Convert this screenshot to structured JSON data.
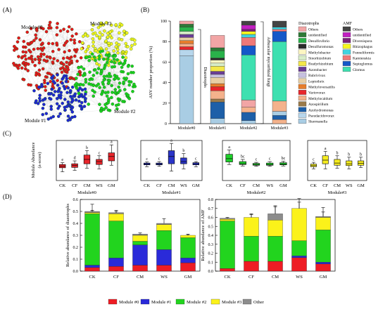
{
  "panel_labels": {
    "A": "(A)",
    "B": "(B)",
    "C": "(C)",
    "D": "(D)"
  },
  "network": {
    "modules": [
      {
        "label": "Module #0",
        "color": "#e8141a"
      },
      {
        "label": "Module #1",
        "color": "#1f24d6"
      },
      {
        "label": "Module #2",
        "color": "#19d11e"
      },
      {
        "label": "Module #3",
        "color": "#f6f61e"
      }
    ]
  },
  "colors": {
    "m0": "#ee1c24",
    "m1": "#2a2ad9",
    "m2": "#22d41e",
    "m3": "#fbf21a",
    "other": "#8c8c8c",
    "box_m0": "#e8262c",
    "box_m1": "#2b35c9",
    "box_m2": "#1dd02a",
    "box_m3": "#f6ed20"
  },
  "chart_data": [
    {
      "panel": "B",
      "type": "bar",
      "stacked": true,
      "ylabel": "ASV number proportion (%)",
      "ylim": [
        0,
        100
      ],
      "yticks": [
        0,
        20,
        40,
        60,
        80,
        100
      ],
      "categories": [
        "Module#0",
        "Module#1",
        "Module#2",
        "Module#3"
      ],
      "bracket_labels": [
        "Diazotrophs",
        "Arbuscular mycorrhizal fungi"
      ],
      "legend_titles": [
        "Diazotrophs",
        "AMF"
      ],
      "diazotroph_legend": [
        {
          "name": "Others",
          "color": "#f2a5a5"
        },
        {
          "name": "unidentified",
          "color": "#2e7a37"
        },
        {
          "name": "Desulfovibrio",
          "color": "#29b24a"
        },
        {
          "name": "Desulfuromonas",
          "color": "#2b2b2b"
        },
        {
          "name": "Methylobacter",
          "color": "#fcf6c2"
        },
        {
          "name": "Sinorhizobium",
          "color": "#d7ecc8"
        },
        {
          "name": "Bradyrhizobium",
          "color": "#f4e84a"
        },
        {
          "name": "Azotobacter",
          "color": "#6a3d97"
        },
        {
          "name": "Rubrivivax",
          "color": "#c7c1e0"
        },
        {
          "name": "Leptothrix",
          "color": "#e8cfa5"
        },
        {
          "name": "Methyloversatilis",
          "color": "#e77d2c"
        },
        {
          "name": "Variovorax",
          "color": "#e8262c"
        },
        {
          "name": "Methylocaldum",
          "color": "#f4b28c"
        },
        {
          "name": "Azospirillum",
          "color": "#9a7a4a"
        },
        {
          "name": "Azohydromonas",
          "color": "#1d5fa8"
        },
        {
          "name": "Pseudacidovorax",
          "color": "#b7d6ec"
        },
        {
          "name": "Skermanella",
          "color": "#a9cde4"
        }
      ],
      "amf_legend": [
        {
          "name": "Others",
          "color": "#444444"
        },
        {
          "name": "unidentified",
          "color": "#c21fc2"
        },
        {
          "name": "Diversispora",
          "color": "#7a1f7a"
        },
        {
          "name": "Rhizophagus",
          "color": "#f6f61e"
        },
        {
          "name": "Funneliformis",
          "color": "#3fd4e0"
        },
        {
          "name": "Kamienskia",
          "color": "#f07878"
        },
        {
          "name": "Septoglomus",
          "color": "#1458c8"
        },
        {
          "name": "Glomus",
          "color": "#3ee0b0"
        }
      ],
      "series_by_column": [
        [
          {
            "name": "Skermanella",
            "value": 66
          },
          {
            "name": "Pseudacidovorax",
            "value": 6
          },
          {
            "name": "Variovorax",
            "value": 3
          },
          {
            "name": "Methylocaldum",
            "value": 3
          },
          {
            "name": "Methyloversatilis",
            "value": 3
          },
          {
            "name": "Leptothrix",
            "value": 3
          },
          {
            "name": "Azotobacter",
            "value": 3
          },
          {
            "name": "Sinorhizobium",
            "value": 3
          },
          {
            "name": "Desulfovibrio",
            "value": 4
          },
          {
            "name": "unidentified",
            "value": 3
          },
          {
            "name": "Others",
            "value": 3
          }
        ],
        [
          {
            "name": "Skermanella",
            "value": 5
          },
          {
            "name": "Azohydromonas",
            "value": 16
          },
          {
            "name": "Azospirillum",
            "value": 3
          },
          {
            "name": "Methylocaldum",
            "value": 8
          },
          {
            "name": "Variovorax",
            "value": 4
          },
          {
            "name": "Methyloversatilis",
            "value": 3
          },
          {
            "name": "Leptothrix",
            "value": 6
          },
          {
            "name": "Rubrivivax",
            "value": 3
          },
          {
            "name": "Azotobacter",
            "value": 3
          },
          {
            "name": "Bradyrhizobium",
            "value": 5
          },
          {
            "name": "Sinorhizobium",
            "value": 3
          },
          {
            "name": "Methylobacter",
            "value": 3
          },
          {
            "name": "Desulfuromonas",
            "value": 2
          },
          {
            "name": "Desulfovibrio",
            "value": 7
          },
          {
            "name": "unidentified",
            "value": 3
          },
          {
            "name": "Others",
            "value": 12
          }
        ],
        [
          {
            "name": "Skermanella",
            "value": 3
          },
          {
            "name": "Azohydromonas",
            "value": 8
          },
          {
            "name": "Methylocaldum",
            "value": 5
          },
          {
            "name": "Others",
            "value": 7
          },
          {
            "name": "Glomus",
            "value": 44
          },
          {
            "name": "Septoglomus",
            "value": 9
          },
          {
            "name": "Kamienskia",
            "value": 8
          },
          {
            "name": "Funneliformis",
            "value": 3
          },
          {
            "name": "Rhizophagus",
            "value": 3
          },
          {
            "name": "Diversispora",
            "value": 2
          },
          {
            "name": "unidentified",
            "value": 4
          },
          {
            "name": "Others",
            "value": 4
          }
        ],
        [
          {
            "name": "Methylocaldum",
            "value": 4
          },
          {
            "name": "Azohydromonas",
            "value": 4
          },
          {
            "name": "Skermanella",
            "value": 4
          },
          {
            "name": "Methylocaldum",
            "value": 10
          },
          {
            "name": "Glomus",
            "value": 58
          },
          {
            "name": "Septoglomus",
            "value": 10
          },
          {
            "name": "Kamienskia",
            "value": 2
          },
          {
            "name": "Funneliformis",
            "value": 2
          },
          {
            "name": "Others",
            "value": 6
          }
        ]
      ]
    },
    {
      "panel": "C",
      "type": "box",
      "ylabel": "Module Abundance",
      "ylabel2": "(z-score)",
      "categories": [
        "CK",
        "CF",
        "CM",
        "WS",
        "GM"
      ],
      "ylim": [
        -2.5,
        3
      ],
      "modules": [
        {
          "module": "Module#0",
          "color_key": "box_m0",
          "letters": [
            "e",
            "d",
            "b",
            "c",
            "a"
          ],
          "boxes": [
            {
              "min": -1.3,
              "q1": -0.75,
              "median": -0.55,
              "q3": -0.3,
              "max": -0.05
            },
            {
              "min": -1.1,
              "q1": -0.7,
              "median": -0.45,
              "q3": -0.2,
              "max": 0.2
            },
            {
              "min": -0.8,
              "q1": -0.2,
              "median": 0.4,
              "q3": 1.0,
              "max": 1.6
            },
            {
              "min": -0.9,
              "q1": -0.3,
              "median": 0.1,
              "q3": 0.4,
              "max": 0.9
            },
            {
              "min": -0.4,
              "q1": 0.2,
              "median": 0.8,
              "q3": 1.3,
              "max": 2.4
            }
          ]
        },
        {
          "module": "Module#1",
          "color_key": "box_m1",
          "letters": [
            "c",
            "c",
            "a",
            "b",
            "c"
          ],
          "boxes": [
            {
              "min": -0.6,
              "q1": -0.35,
              "median": -0.25,
              "q3": -0.1,
              "max": 0.05
            },
            {
              "min": -0.55,
              "q1": -0.35,
              "median": -0.25,
              "q3": -0.1,
              "max": 0.1
            },
            {
              "min": -1.2,
              "q1": -0.2,
              "median": 0.8,
              "q3": 1.6,
              "max": 2.6
            },
            {
              "min": -0.9,
              "q1": -0.2,
              "median": 0.1,
              "q3": 0.6,
              "max": 1.2
            },
            {
              "min": -0.6,
              "q1": -0.35,
              "median": -0.2,
              "q3": -0.05,
              "max": 0.1
            }
          ]
        },
        {
          "module": "Module#2",
          "color_key": "box_m2",
          "letters": [
            "a",
            "bc",
            "c",
            "c",
            "bc"
          ],
          "boxes": [
            {
              "min": -0.3,
              "q1": 0.05,
              "median": 0.5,
              "q3": 1.1,
              "max": 1.7
            },
            {
              "min": -0.5,
              "q1": -0.3,
              "median": -0.2,
              "q3": 0.1,
              "max": 0.4
            },
            {
              "min": -0.55,
              "q1": -0.4,
              "median": -0.3,
              "q3": -0.15,
              "max": 0.0
            },
            {
              "min": -0.55,
              "q1": -0.4,
              "median": -0.3,
              "q3": -0.1,
              "max": 0.1
            },
            {
              "min": -0.5,
              "q1": -0.35,
              "median": -0.25,
              "q3": -0.05,
              "max": 0.15
            }
          ]
        },
        {
          "module": "Module#3",
          "color_key": "box_m3",
          "letters": [
            "c",
            "a",
            "b",
            "b",
            "b"
          ],
          "boxes": [
            {
              "min": -0.9,
              "q1": -0.6,
              "median": -0.45,
              "q3": -0.25,
              "max": 0.0
            },
            {
              "min": -0.9,
              "q1": -0.2,
              "median": 0.3,
              "q3": 0.9,
              "max": 1.5
            },
            {
              "min": -0.8,
              "q1": -0.4,
              "median": -0.1,
              "q3": 0.4,
              "max": 0.9
            },
            {
              "min": -0.9,
              "q1": -0.45,
              "median": -0.2,
              "q3": 0.2,
              "max": 0.7
            },
            {
              "min": -0.7,
              "q1": -0.4,
              "median": -0.15,
              "q3": 0.2,
              "max": 0.7
            }
          ]
        }
      ]
    },
    {
      "panel": "D-left",
      "type": "bar",
      "stacked": true,
      "ylabel": "Relative abundance of diazotrophs",
      "ylim": [
        0,
        0.6
      ],
      "yticks": [
        0.0,
        0.1,
        0.2,
        0.3,
        0.4,
        0.5,
        0.6
      ],
      "categories": [
        "CK",
        "CF",
        "CM",
        "WS",
        "GM"
      ],
      "series": [
        {
          "name": "Module #0",
          "values": [
            0.03,
            0.04,
            0.05,
            0.05,
            0.07
          ],
          "errors": [
            0.01,
            0.02,
            0.02,
            0.02,
            0.02
          ]
        },
        {
          "name": "Module #1",
          "values": [
            0.02,
            0.07,
            0.17,
            0.13,
            0.04
          ],
          "errors": [
            0.01,
            0.05,
            0.04,
            0.05,
            0.01
          ]
        },
        {
          "name": "Module #2",
          "values": [
            0.43,
            0.31,
            0.03,
            0.16,
            0.17
          ],
          "errors": [
            0.03,
            0.05,
            0.01,
            0.05,
            0.02
          ]
        },
        {
          "name": "Module #3",
          "values": [
            0.01,
            0.06,
            0.05,
            0.05,
            0.02
          ],
          "errors": [
            0.01,
            0.03,
            0.01,
            0.05,
            0.01
          ]
        },
        {
          "name": "Other",
          "values": [
            0.01,
            0.01,
            0.01,
            0.01,
            0.0
          ],
          "errors": [
            0.06,
            0.01,
            0.01,
            0.0,
            0.01
          ]
        }
      ]
    },
    {
      "panel": "D-right",
      "type": "bar",
      "stacked": true,
      "ylabel": "Relative abundance of AMF",
      "ylim": [
        0,
        0.8
      ],
      "yticks": [
        0.0,
        0.1,
        0.2,
        0.3,
        0.4,
        0.5,
        0.6,
        0.7,
        0.8
      ],
      "categories": [
        "CK",
        "CF",
        "CM",
        "WS",
        "GM"
      ],
      "series": [
        {
          "name": "Module #0",
          "values": [
            0.03,
            0.11,
            0.11,
            0.15,
            0.08
          ],
          "errors": [
            0.01,
            0.03,
            0.03,
            0.04,
            0.04
          ]
        },
        {
          "name": "Module #1",
          "values": [
            0.0,
            0.0,
            0.0,
            0.02,
            0.02
          ],
          "errors": [
            0.0,
            0.0,
            0.0,
            0.02,
            0.01
          ]
        },
        {
          "name": "Module #2",
          "values": [
            0.53,
            0.28,
            0.28,
            0.17,
            0.36
          ],
          "errors": [
            0.03,
            0.08,
            0.08,
            0.05,
            0.08
          ]
        },
        {
          "name": "Module #3",
          "values": [
            0.02,
            0.21,
            0.18,
            0.36,
            0.14
          ],
          "errors": [
            0.02,
            0.04,
            0.16,
            0.11,
            0.11
          ]
        },
        {
          "name": "Other",
          "values": [
            0.01,
            0.0,
            0.07,
            0.0,
            0.01
          ],
          "errors": [
            0.0,
            0.03,
            0.08,
            0.07,
            0.05
          ]
        }
      ]
    }
  ],
  "legend_d": [
    {
      "name": "Module #0",
      "color_key": "m0"
    },
    {
      "name": "Module #1",
      "color_key": "m1"
    },
    {
      "name": "Module #2",
      "color_key": "m2"
    },
    {
      "name": "Module #3",
      "color_key": "m3"
    },
    {
      "name": "Other",
      "color_key": "other"
    }
  ]
}
